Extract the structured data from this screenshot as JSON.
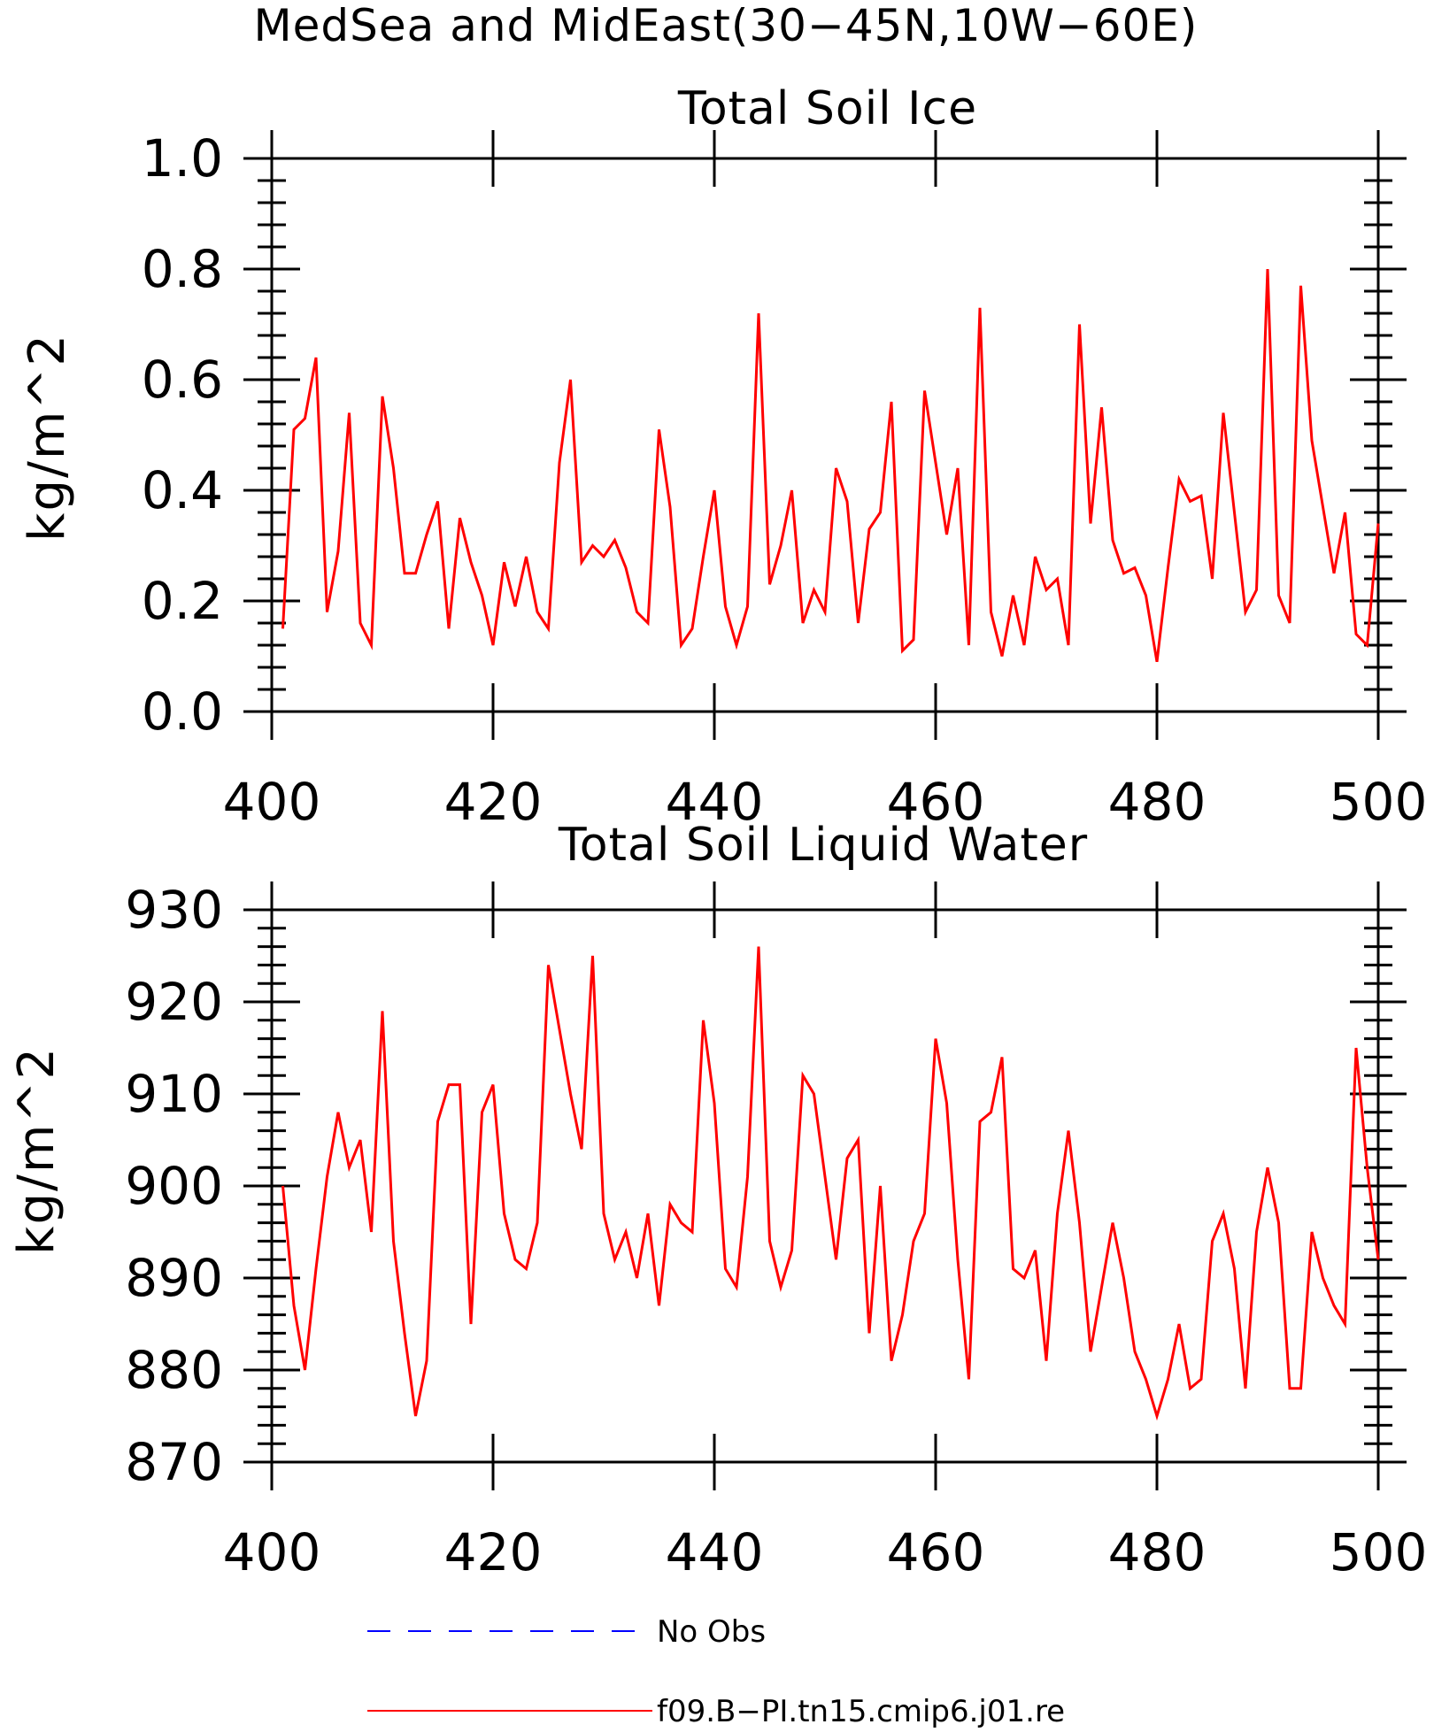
{
  "figure": {
    "suptitle": "MedSea and MidEast(30−45N,10W−60E)"
  },
  "chart_data": [
    {
      "type": "line",
      "title": "Total Soil Ice",
      "xlabel": "",
      "ylabel": "kg/m^2",
      "xlim": [
        400,
        500
      ],
      "ylim": [
        0.0,
        1.0
      ],
      "x_ticks": [
        "400",
        "420",
        "440",
        "460",
        "480",
        "500"
      ],
      "y_ticks": [
        "0.0",
        "0.2",
        "0.4",
        "0.6",
        "0.8",
        "1.0"
      ],
      "y_tick_values": [
        0.0,
        0.2,
        0.4,
        0.6,
        0.8,
        1.0
      ],
      "x_tick_values": [
        400,
        420,
        440,
        460,
        480,
        500
      ],
      "grid": false,
      "series": [
        {
          "name": "f09.B−PI.tn15.cmip6.j01.re",
          "color": "#ff0000",
          "x_start": 401,
          "x_step": 1,
          "values": [
            0.15,
            0.51,
            0.53,
            0.64,
            0.18,
            0.29,
            0.54,
            0.16,
            0.12,
            0.57,
            0.44,
            0.25,
            0.25,
            0.32,
            0.38,
            0.15,
            0.35,
            0.27,
            0.21,
            0.12,
            0.27,
            0.19,
            0.28,
            0.18,
            0.15,
            0.45,
            0.6,
            0.27,
            0.3,
            0.28,
            0.31,
            0.26,
            0.18,
            0.16,
            0.51,
            0.37,
            0.12,
            0.15,
            0.28,
            0.4,
            0.19,
            0.12,
            0.19,
            0.72,
            0.23,
            0.3,
            0.4,
            0.16,
            0.22,
            0.18,
            0.44,
            0.38,
            0.16,
            0.33,
            0.36,
            0.56,
            0.11,
            0.13,
            0.58,
            0.45,
            0.32,
            0.44,
            0.12,
            0.73,
            0.18,
            0.1,
            0.21,
            0.12,
            0.28,
            0.22,
            0.24,
            0.12,
            0.7,
            0.34,
            0.55,
            0.31,
            0.25,
            0.26,
            0.21,
            0.09,
            0.26,
            0.42,
            0.38,
            0.39,
            0.24,
            0.54,
            0.36,
            0.18,
            0.22,
            0.8,
            0.21,
            0.16,
            0.77,
            0.49,
            0.37,
            0.25,
            0.36,
            0.14,
            0.12,
            0.34
          ]
        }
      ]
    },
    {
      "type": "line",
      "title": "Total Soil Liquid Water",
      "xlabel": "",
      "ylabel": "kg/m^2",
      "xlim": [
        400,
        500
      ],
      "ylim": [
        870,
        930
      ],
      "x_ticks": [
        "400",
        "420",
        "440",
        "460",
        "480",
        "500"
      ],
      "y_ticks": [
        "870",
        "880",
        "890",
        "900",
        "910",
        "920",
        "930"
      ],
      "y_tick_values": [
        870,
        880,
        890,
        900,
        910,
        920,
        930
      ],
      "x_tick_values": [
        400,
        420,
        440,
        460,
        480,
        500
      ],
      "grid": false,
      "series": [
        {
          "name": "f09.B−PI.tn15.cmip6.j01.re",
          "color": "#ff0000",
          "x_start": 401,
          "x_step": 1,
          "values": [
            900,
            887,
            880,
            891,
            901,
            908,
            902,
            905,
            895,
            919,
            894,
            884,
            875,
            881,
            907,
            911,
            911,
            885,
            908,
            911,
            897,
            892,
            891,
            896,
            924,
            917,
            910,
            904,
            925,
            897,
            892,
            895,
            890,
            897,
            887,
            898,
            896,
            895,
            918,
            909,
            891,
            889,
            901,
            926,
            894,
            889,
            893,
            912,
            910,
            901,
            892,
            903,
            905,
            884,
            900,
            881,
            886,
            894,
            897,
            916,
            909,
            892,
            879,
            907,
            908,
            914,
            891,
            890,
            893,
            881,
            897,
            906,
            896,
            882,
            889,
            896,
            890,
            882,
            879,
            875,
            879,
            885,
            878,
            879,
            894,
            897,
            891,
            878,
            895,
            902,
            896,
            878,
            878,
            895,
            890,
            887,
            885,
            915,
            902,
            892
          ]
        }
      ]
    }
  ],
  "legend": {
    "placement": "bottom-center",
    "entries": [
      {
        "label": "No Obs",
        "color": "#0000ff",
        "style": "dashed"
      },
      {
        "label": "f09.B−PI.tn15.cmip6.j01.re",
        "color": "#ff0000",
        "style": "solid"
      }
    ]
  }
}
